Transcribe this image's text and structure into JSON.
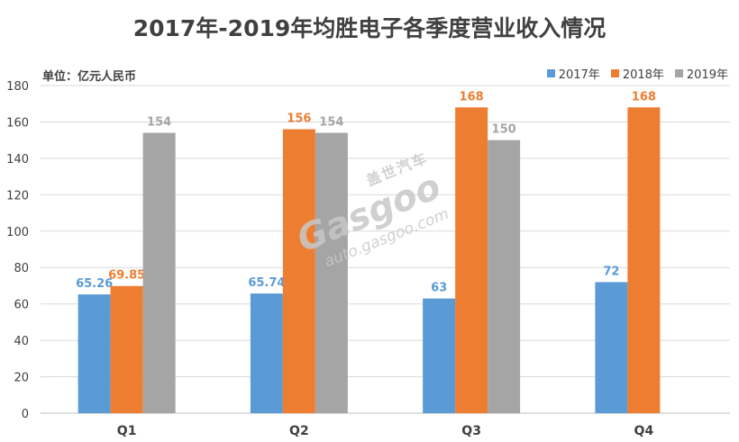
{
  "title": "2017年-2019年均胜电子各季度营业收入情况",
  "unit_label": "单位：亿元人民币",
  "watermark": {
    "cn": "盖世汽车",
    "logo": "Gasgoo",
    "url": "auto.gasgoo.com"
  },
  "chart_data": {
    "type": "bar",
    "title": "2017年-2019年均胜电子各季度营业收入情况",
    "ylabel": "单位：亿元人民币",
    "xlabel": "",
    "ylim": [
      0,
      180
    ],
    "yticks": [
      0,
      20,
      40,
      60,
      80,
      100,
      120,
      140,
      160,
      180
    ],
    "categories": [
      "Q1",
      "Q2",
      "Q3",
      "Q4"
    ],
    "grid": true,
    "legend_position": "top-right",
    "series": [
      {
        "name": "2017年",
        "color": "#5B9BD5",
        "values": [
          65.26,
          65.74,
          63,
          72
        ],
        "labels": [
          "65.26",
          "65.74",
          "63",
          "72"
        ]
      },
      {
        "name": "2018年",
        "color": "#ED7D31",
        "values": [
          69.85,
          156,
          168,
          168
        ],
        "labels": [
          "69.85",
          "156",
          "168",
          "168"
        ]
      },
      {
        "name": "2019年",
        "color": "#A5A5A5",
        "values": [
          154,
          154,
          150,
          null
        ],
        "labels": [
          "154",
          "154",
          "150",
          null
        ]
      }
    ]
  }
}
